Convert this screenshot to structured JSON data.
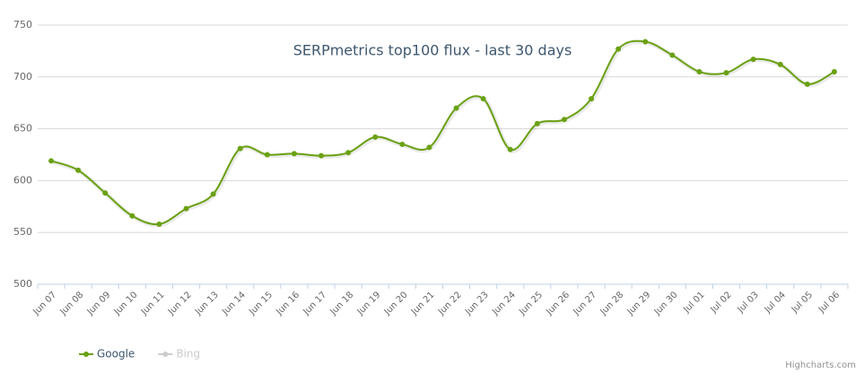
{
  "chart_data": {
    "type": "line",
    "title": "SERPmetrics top100 flux - last 30 days",
    "categories": [
      "Jun 07",
      "Jun 08",
      "Jun 09",
      "Jun 10",
      "Jun 11",
      "Jun 12",
      "Jun 13",
      "Jun 14",
      "Jun 15",
      "Jun 16",
      "Jun 17",
      "Jun 18",
      "Jun 19",
      "Jun 20",
      "Jun 21",
      "Jun 22",
      "Jun 23",
      "Jun 24",
      "Jun 25",
      "Jun 26",
      "Jun 27",
      "Jun 28",
      "Jun 29",
      "Jun 30",
      "Jul 01",
      "Jul 02",
      "Jul 03",
      "Jul 04",
      "Jul 05",
      "Jul 06"
    ],
    "series": [
      {
        "name": "Google",
        "color": "#6aa112",
        "values": [
          619,
          610,
          588,
          566,
          558,
          573,
          587,
          631,
          625,
          626,
          624,
          627,
          642,
          635,
          632,
          670,
          679,
          630,
          655,
          659,
          679,
          727,
          734,
          721,
          705,
          704,
          717,
          712,
          693,
          705
        ]
      },
      {
        "name": "Bing",
        "color": "#cccccc",
        "visible": false
      }
    ],
    "ylim": [
      500,
      750
    ],
    "yticks": [
      500,
      550,
      600,
      650,
      700,
      750
    ],
    "grid": true,
    "smooth": true,
    "legend": "bottom-left",
    "credits": "Highcharts.com"
  }
}
